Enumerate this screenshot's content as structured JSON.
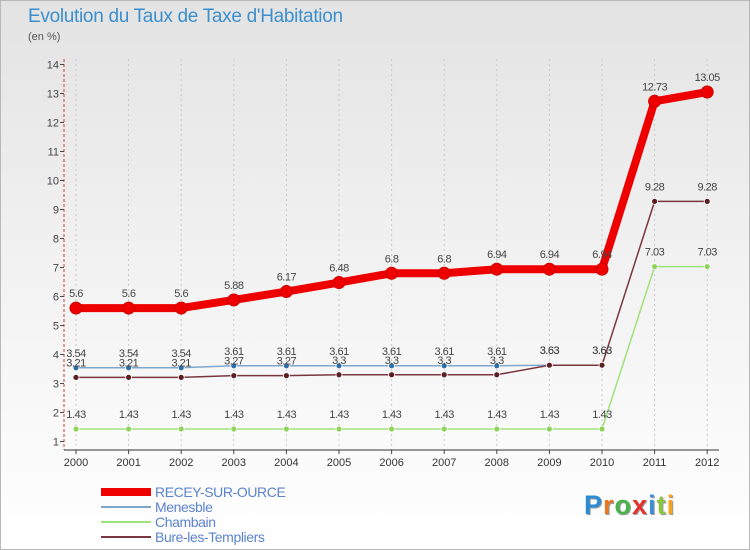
{
  "title": "Evolution du Taux de Taxe d'Habitation",
  "subtitle": "(en %)",
  "brand": {
    "text": "Proxiti",
    "letter_colors": [
      "#2d8bd6",
      "#e87822",
      "#4ab24a",
      "#e4322e",
      "#3a8fd6",
      "#8cc63f",
      "#f5a61e"
    ]
  },
  "chart_data": {
    "type": "line",
    "title": "Evolution du Taux de Taxe d'Habitation",
    "ylabel": "(en %)",
    "xlabel": "",
    "x": [
      "2000",
      "2001",
      "2002",
      "2003",
      "2004",
      "2005",
      "2006",
      "2007",
      "2008",
      "2009",
      "2010",
      "2011",
      "2012"
    ],
    "ylim": [
      0.5,
      14
    ],
    "yticks": [
      "1",
      "2",
      "3",
      "4",
      "5",
      "6",
      "7",
      "8",
      "9",
      "10",
      "11",
      "12",
      "13",
      "14"
    ],
    "grid": "vertical-dashed",
    "legend": "bottom-left",
    "series": [
      {
        "name": "RECEY-SUR-OURCE",
        "color": "#ee0000",
        "marker_color": "#ee0000",
        "values": [
          5.6,
          5.6,
          5.6,
          5.88,
          6.17,
          6.48,
          6.8,
          6.8,
          6.94,
          6.94,
          6.94,
          12.73,
          13.05
        ],
        "labels": [
          "5.6",
          "5.6",
          "5.6",
          "5.88",
          "6.17",
          "6.48",
          "6.8",
          "6.8",
          "6.94",
          "6.94",
          "6.94",
          "12.73",
          "13.05"
        ]
      },
      {
        "name": "Menesble",
        "color": "#7fa7cd",
        "marker_color": "#2f6fa8",
        "values": [
          3.54,
          3.54,
          3.54,
          3.61,
          3.61,
          3.61,
          3.61,
          3.61,
          3.61,
          3.63,
          3.63,
          null,
          null
        ],
        "labels": [
          "3.54",
          "3.54",
          "3.54",
          "3.61",
          "3.61",
          "3.61",
          "3.61",
          "3.61",
          "3.61",
          "3.63",
          "3.63",
          "",
          ""
        ]
      },
      {
        "name": "Chambain",
        "color": "#9ee27a",
        "marker_color": "#8fd35c",
        "values": [
          1.43,
          1.43,
          1.43,
          1.43,
          1.43,
          1.43,
          1.43,
          1.43,
          1.43,
          1.43,
          1.43,
          7.03,
          7.03
        ],
        "labels": [
          "1.43",
          "1.43",
          "1.43",
          "1.43",
          "1.43",
          "1.43",
          "1.43",
          "1.43",
          "1.43",
          "1.43",
          "1.43",
          "7.03",
          "7.03"
        ]
      },
      {
        "name": "Bure-les-Templiers",
        "color": "#7a3640",
        "marker_color": "#5b1f22",
        "values": [
          3.21,
          3.21,
          3.21,
          3.27,
          3.27,
          3.3,
          3.3,
          3.3,
          3.3,
          3.63,
          3.63,
          9.28,
          9.28
        ],
        "labels": [
          "3.21",
          "3.21",
          "3.21",
          "3.27",
          "3.27",
          "3.3",
          "3.3",
          "3.3",
          "3.3",
          "3.63",
          "3.63",
          "9.28",
          "9.28"
        ]
      }
    ]
  }
}
